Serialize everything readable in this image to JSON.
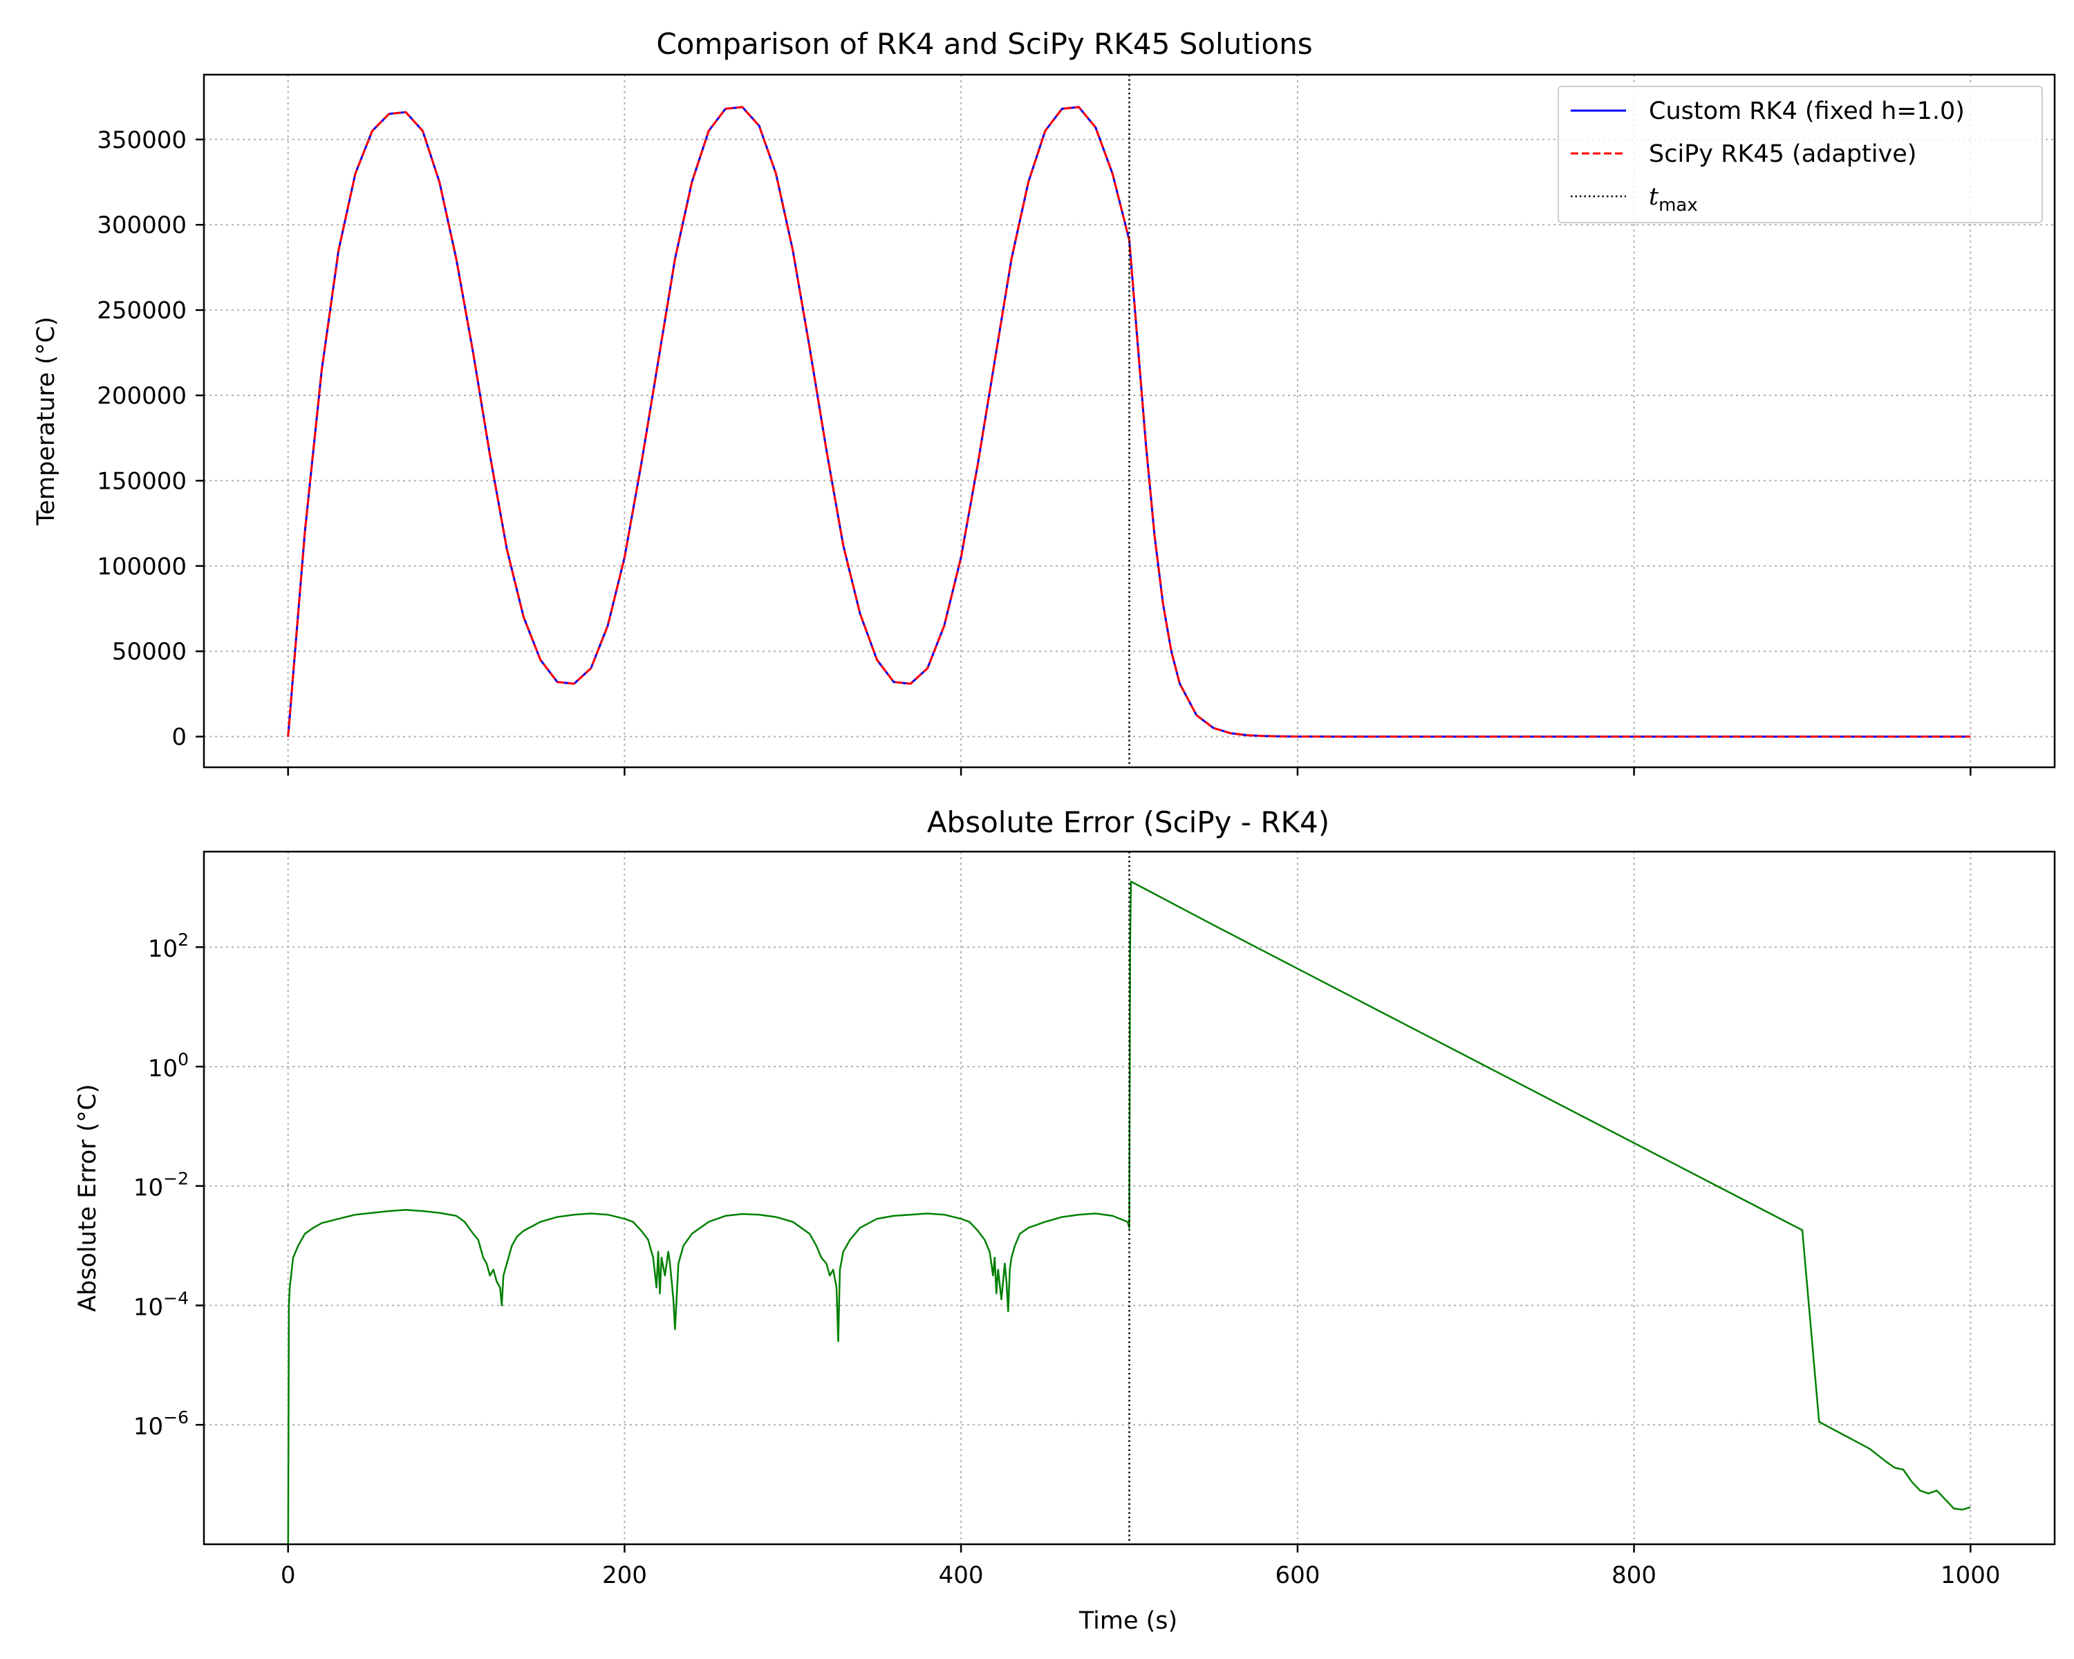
{
  "chart_data": [
    {
      "type": "line",
      "title": "Comparison of RK4 and SciPy RK45 Solutions",
      "xlabel": "",
      "ylabel": "Temperature (°C)",
      "xlim": [
        -50,
        1050
      ],
      "ylim": [
        -18000,
        388000
      ],
      "x_ticks": [
        0,
        200,
        400,
        600,
        800,
        1000
      ],
      "x_tick_labels_shown": false,
      "y_ticks": [
        0,
        50000,
        100000,
        150000,
        200000,
        250000,
        300000,
        350000
      ],
      "y_tick_labels": [
        "0",
        "50000",
        "100000",
        "150000",
        "200000",
        "250000",
        "300000",
        "350000"
      ],
      "grid": true,
      "legend_position": "top-right",
      "legend": [
        {
          "label": "Custom RK4 (fixed h=1.0)",
          "color": "#0000ff",
          "style": "solid"
        },
        {
          "label": "SciPy RK45 (adaptive)",
          "color": "#ff0000",
          "style": "dashed"
        },
        {
          "label": "t",
          "subscript": "max",
          "color": "#000000",
          "style": "dotted"
        }
      ],
      "series": [
        {
          "name": "Custom RK4 (fixed h=1.0)",
          "color": "#0000ff",
          "style": "solid",
          "x": [
            0,
            10,
            20,
            30,
            40,
            50,
            60,
            70,
            80,
            90,
            100,
            110,
            120,
            130,
            140,
            150,
            160,
            170,
            180,
            190,
            200,
            210,
            220,
            230,
            240,
            250,
            260,
            270,
            280,
            290,
            300,
            310,
            320,
            330,
            340,
            350,
            360,
            370,
            380,
            390,
            400,
            410,
            420,
            430,
            440,
            450,
            460,
            470,
            480,
            490,
            500,
            505,
            510,
            515,
            520,
            525,
            530,
            540,
            550,
            560,
            570,
            580,
            590,
            600,
            620,
            650,
            700,
            800,
            900,
            1000
          ],
          "y": [
            0,
            120000,
            215000,
            285000,
            330000,
            355000,
            365000,
            366000,
            355000,
            325000,
            280000,
            225000,
            165000,
            110000,
            70000,
            45000,
            32000,
            31000,
            40000,
            65000,
            105000,
            160000,
            220000,
            280000,
            325000,
            355000,
            368000,
            369000,
            358000,
            330000,
            285000,
            228000,
            168000,
            112000,
            72000,
            45000,
            32000,
            31000,
            40000,
            65000,
            105000,
            160000,
            220000,
            280000,
            325000,
            355000,
            368000,
            369000,
            357000,
            330000,
            291000,
            230000,
            170000,
            118000,
            78000,
            50000,
            31000,
            12500,
            5000,
            2000,
            800,
            320,
            130,
            50,
            10,
            2,
            0,
            0,
            0,
            0
          ]
        },
        {
          "name": "SciPy RK45 (adaptive)",
          "color": "#ff0000",
          "style": "dashed",
          "x": [
            0,
            10,
            20,
            30,
            40,
            50,
            60,
            70,
            80,
            90,
            100,
            110,
            120,
            130,
            140,
            150,
            160,
            170,
            180,
            190,
            200,
            210,
            220,
            230,
            240,
            250,
            260,
            270,
            280,
            290,
            300,
            310,
            320,
            330,
            340,
            350,
            360,
            370,
            380,
            390,
            400,
            410,
            420,
            430,
            440,
            450,
            460,
            470,
            480,
            490,
            500,
            505,
            510,
            515,
            520,
            525,
            530,
            540,
            550,
            560,
            570,
            580,
            590,
            600,
            620,
            650,
            700,
            800,
            900,
            1000
          ],
          "y": [
            0,
            120000,
            215000,
            285000,
            330000,
            355000,
            365000,
            366000,
            355000,
            325000,
            280000,
            225000,
            165000,
            110000,
            70000,
            45000,
            32000,
            31000,
            40000,
            65000,
            105000,
            160000,
            220000,
            280000,
            325000,
            355000,
            368000,
            369000,
            358000,
            330000,
            285000,
            228000,
            168000,
            112000,
            72000,
            45000,
            32000,
            31000,
            40000,
            65000,
            105000,
            160000,
            220000,
            280000,
            325000,
            355000,
            368000,
            369000,
            357000,
            330000,
            291000,
            230000,
            170000,
            118000,
            78000,
            50000,
            31000,
            12500,
            5000,
            2000,
            800,
            320,
            130,
            50,
            10,
            2,
            0,
            0,
            0,
            0
          ]
        }
      ],
      "vline": {
        "x": 500,
        "color": "#000000",
        "style": "dotted"
      }
    },
    {
      "type": "line",
      "title": "Absolute Error (SciPy - RK4)",
      "xlabel": "Time (s)",
      "ylabel": "Absolute Error (°C)",
      "xlim": [
        -50,
        1050
      ],
      "ylim_log10": [
        -8.0,
        3.6
      ],
      "yscale": "log",
      "x_ticks": [
        0,
        200,
        400,
        600,
        800,
        1000
      ],
      "x_tick_labels": [
        "0",
        "200",
        "400",
        "600",
        "800",
        "1000"
      ],
      "y_ticks_log10": [
        -6,
        -4,
        -2,
        0,
        2
      ],
      "y_tick_labels": [
        {
          "base": "10",
          "exp": "−6"
        },
        {
          "base": "10",
          "exp": "−4"
        },
        {
          "base": "10",
          "exp": "−2"
        },
        {
          "base": "10",
          "exp": "0"
        },
        {
          "base": "10",
          "exp": "2"
        }
      ],
      "grid": true,
      "series": [
        {
          "color": "#008000",
          "style": "solid",
          "x": [
            0,
            0.5,
            1,
            3,
            6,
            10,
            15,
            20,
            30,
            40,
            50,
            60,
            70,
            80,
            90,
            100,
            105,
            110,
            113,
            116,
            118,
            120,
            122,
            124,
            126,
            127,
            128,
            130,
            133,
            136,
            140,
            150,
            160,
            170,
            180,
            190,
            200,
            205,
            210,
            214,
            217,
            219,
            220,
            221,
            222,
            224,
            226,
            227,
            228,
            229,
            230,
            232,
            235,
            240,
            250,
            260,
            270,
            280,
            290,
            300,
            305,
            310,
            314,
            317,
            320,
            322,
            324,
            326,
            327,
            328,
            330,
            334,
            340,
            350,
            360,
            370,
            380,
            390,
            400,
            405,
            410,
            414,
            417,
            419,
            420,
            421,
            422,
            424,
            426,
            427,
            428,
            429,
            430,
            432,
            435,
            440,
            450,
            460,
            470,
            480,
            490,
            499,
            500,
            500.5,
            501,
            550,
            600,
            650,
            700,
            750,
            800,
            850,
            900,
            910,
            920,
            930,
            940,
            950,
            955,
            960,
            965,
            970,
            975,
            980,
            985,
            990,
            995,
            1000
          ],
          "log10_y": [
            -8.5,
            -4.0,
            -3.7,
            -3.2,
            -3.0,
            -2.8,
            -2.7,
            -2.62,
            -2.55,
            -2.48,
            -2.45,
            -2.42,
            -2.4,
            -2.42,
            -2.45,
            -2.5,
            -2.6,
            -2.8,
            -2.9,
            -3.2,
            -3.3,
            -3.5,
            -3.4,
            -3.6,
            -3.7,
            -4.0,
            -3.5,
            -3.3,
            -3.0,
            -2.85,
            -2.75,
            -2.6,
            -2.52,
            -2.48,
            -2.46,
            -2.48,
            -2.55,
            -2.6,
            -2.75,
            -2.9,
            -3.2,
            -3.7,
            -3.1,
            -3.8,
            -3.2,
            -3.5,
            -3.1,
            -3.3,
            -3.6,
            -3.9,
            -4.4,
            -3.3,
            -3.0,
            -2.8,
            -2.6,
            -2.5,
            -2.47,
            -2.48,
            -2.52,
            -2.6,
            -2.7,
            -2.8,
            -3.0,
            -3.2,
            -3.3,
            -3.5,
            -3.4,
            -3.7,
            -4.6,
            -3.4,
            -3.1,
            -2.9,
            -2.7,
            -2.55,
            -2.5,
            -2.48,
            -2.46,
            -2.48,
            -2.55,
            -2.6,
            -2.75,
            -2.9,
            -3.1,
            -3.5,
            -3.2,
            -3.8,
            -3.4,
            -3.9,
            -3.3,
            -3.6,
            -4.1,
            -3.4,
            -3.2,
            -3.0,
            -2.8,
            -2.7,
            -2.6,
            -2.52,
            -2.48,
            -2.46,
            -2.5,
            -2.6,
            -2.7,
            2.0,
            3.1,
            2.37,
            1.64,
            0.91,
            0.18,
            -0.55,
            -1.28,
            -2.01,
            -2.74,
            -5.95,
            -6.1,
            -6.25,
            -6.4,
            -6.62,
            -6.72,
            -6.75,
            -6.95,
            -7.1,
            -7.15,
            -7.1,
            -7.25,
            -7.4,
            -7.42,
            -7.38
          ]
        }
      ],
      "vline": {
        "x": 500,
        "color": "#000000",
        "style": "dotted"
      }
    }
  ]
}
